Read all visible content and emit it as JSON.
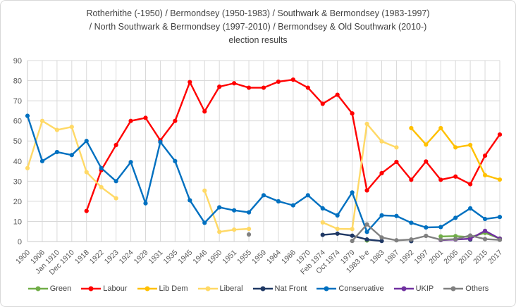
{
  "title": {
    "lines": {
      "l1": "Rotherhithe  (-1950) / Bermondsey  (1950-1983) / Southwark  &  Bermondsey  (1983-1997)",
      "l2": "/ North  Southwark  &  Bermondsey  (1997-2010) / Bermondsey  &  Old  Southwark  (2010-)",
      "l3": "election results"
    }
  },
  "chart_data": {
    "type": "line",
    "title": "Rotherhithe (-1950) / Bermondsey (1950-1983) / Southwark & Bermondsey (1983-1997) / North Southwark & Bermondsey (1997-2010) / Bermondsey & Old Southwark (2010-) election results",
    "xlabel": "",
    "ylabel": "",
    "ylim": [
      0,
      90
    ],
    "ytick_step": 10,
    "grid": true,
    "legend_position": "bottom",
    "categories": [
      "1900",
      "1906",
      "Jan 1910",
      "Dec 1910",
      "1918",
      "1922",
      "1923",
      "1924",
      "1929",
      "1931",
      "1935",
      "1945",
      "1946",
      "1950",
      "1951",
      "1955",
      "1959",
      "1964",
      "1966",
      "1970",
      "Feb 1974",
      "Oct 1974",
      "1979",
      "1983 b-e",
      "1983",
      "1987",
      "1992",
      "1997",
      "2001",
      "2005",
      "2010",
      "2015",
      "2017"
    ],
    "series": [
      {
        "name": "Green",
        "color": "#70ad47",
        "values": [
          null,
          null,
          null,
          null,
          null,
          null,
          null,
          null,
          null,
          null,
          null,
          null,
          null,
          null,
          null,
          null,
          null,
          null,
          null,
          null,
          null,
          null,
          null,
          0.5,
          null,
          null,
          null,
          null,
          2.5,
          2.7,
          2.2,
          4.3,
          1.5
        ]
      },
      {
        "name": "Labour",
        "color": "#ff0000",
        "values": [
          null,
          null,
          null,
          null,
          15.2,
          35.5,
          48,
          60,
          61.5,
          50.3,
          60,
          79.3,
          64.7,
          77,
          78.7,
          76.5,
          76.5,
          79.5,
          80.5,
          76.5,
          68.5,
          73,
          63.7,
          25.4,
          34,
          39.6,
          30.7,
          39.8,
          30.7,
          32.3,
          28.5,
          42.7,
          53.2
        ]
      },
      {
        "name": "Lib Dem",
        "color": "#ffc000",
        "values": [
          null,
          null,
          null,
          null,
          null,
          null,
          null,
          null,
          null,
          null,
          null,
          null,
          null,
          null,
          null,
          null,
          null,
          null,
          null,
          null,
          null,
          null,
          null,
          null,
          null,
          null,
          56.4,
          48.2,
          56.4,
          46.8,
          48,
          33,
          30.8
        ]
      },
      {
        "name": "Liberal",
        "color": "#ffd966",
        "values": [
          36.5,
          60,
          55.5,
          57,
          34.5,
          27,
          21.5,
          null,
          null,
          null,
          null,
          null,
          25.3,
          4.8,
          5.9,
          6.3,
          null,
          null,
          null,
          null,
          9.5,
          6.3,
          6.2,
          58.5,
          49.8,
          46.8,
          null,
          null,
          null,
          null,
          null,
          null,
          null
        ]
      },
      {
        "name": "Nat Front",
        "color": "#1f3864",
        "values": [
          null,
          null,
          null,
          null,
          null,
          null,
          null,
          null,
          null,
          null,
          null,
          null,
          null,
          null,
          null,
          null,
          null,
          null,
          null,
          null,
          3.3,
          3.9,
          2.9,
          1.0,
          0.3,
          null,
          0.2,
          null,
          null,
          null,
          1.0,
          null,
          null
        ]
      },
      {
        "name": "Conservative",
        "color": "#0070c0",
        "values": [
          62.5,
          40,
          44.5,
          43,
          50,
          36.5,
          30,
          39.5,
          19,
          49.5,
          40,
          20.5,
          9.3,
          17,
          15.5,
          14.5,
          23,
          20,
          18,
          23,
          16.5,
          13,
          24.4,
          4.8,
          13,
          12.7,
          9.3,
          7,
          7.2,
          11.8,
          16.5,
          11.2,
          12.2
        ]
      },
      {
        "name": "UKIP",
        "color": "#7030a0",
        "values": [
          null,
          null,
          null,
          null,
          null,
          null,
          null,
          null,
          null,
          null,
          null,
          null,
          null,
          null,
          null,
          null,
          null,
          null,
          null,
          null,
          null,
          null,
          null,
          null,
          null,
          null,
          null,
          null,
          0.7,
          1.0,
          1.4,
          5.3,
          1.4
        ]
      },
      {
        "name": "Others",
        "color": "#808080",
        "values": [
          null,
          null,
          null,
          null,
          null,
          null,
          null,
          null,
          null,
          null,
          null,
          null,
          null,
          null,
          null,
          3.5,
          null,
          null,
          null,
          null,
          null,
          null,
          0.3,
          8.5,
          2.0,
          0.6,
          1.0,
          2.8,
          0.9,
          1.2,
          3.0,
          1.2,
          0.8
        ]
      }
    ]
  },
  "colors": {
    "grid": "#d9d9d9",
    "axis": "#c8c8c8",
    "tick_label": "#595959",
    "title_text": "#404040"
  }
}
